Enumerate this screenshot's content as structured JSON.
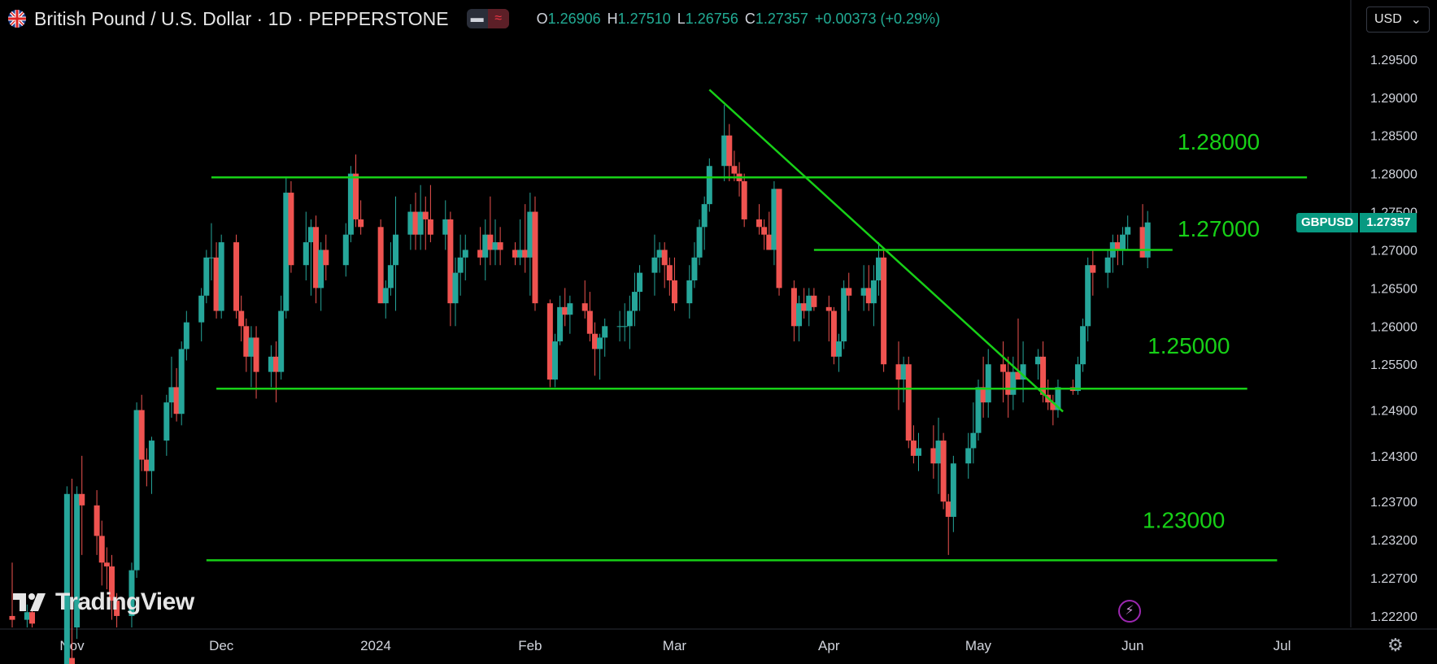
{
  "header": {
    "symbol_title": "British Pound / U.S. Dollar · 1D · PEPPERSTONE",
    "ohlc": {
      "o_label": "O",
      "o": "1.26906",
      "h_label": "H",
      "h": "1.27510",
      "l_label": "L",
      "l": "1.26756",
      "c_label": "C",
      "c": "1.27357",
      "change": "+0.00373 (+0.29%)"
    }
  },
  "currency_selector": {
    "label": "USD",
    "arrow": "⌄"
  },
  "ticker": {
    "name": "GBPUSD",
    "price": "1.27357"
  },
  "logo": {
    "text": "TradingView"
  },
  "colors": {
    "up": "#26a69a",
    "down": "#ef5350",
    "annotation": "#17d017",
    "grid": "#1e222d",
    "axis_text": "#d1d4dc",
    "tag": "#089981"
  },
  "chart_data": {
    "type": "candlestick",
    "title": "British Pound / U.S. Dollar · 1D · PEPPERSTONE",
    "ylim": [
      1.2205,
      1.2985
    ],
    "y_ticks": [
      "1.29500",
      "1.29000",
      "1.28500",
      "1.28000",
      "1.27500",
      "1.27000",
      "1.26500",
      "1.26000",
      "1.25500",
      "1.24900",
      "1.24300",
      "1.23700",
      "1.23200",
      "1.22700",
      "1.22200"
    ],
    "x_ticks": [
      {
        "label": "Nov",
        "date": "2023-11-01"
      },
      {
        "label": "Dec",
        "date": "2023-12-01"
      },
      {
        "label": "2024",
        "date": "2024-01-01"
      },
      {
        "label": "Feb",
        "date": "2024-02-01"
      },
      {
        "label": "Mar",
        "date": "2024-03-01"
      },
      {
        "label": "Apr",
        "date": "2024-04-01"
      },
      {
        "label": "May",
        "date": "2024-05-01"
      },
      {
        "label": "Jun",
        "date": "2024-06-01"
      },
      {
        "label": "Jul",
        "date": "2024-07-01"
      }
    ],
    "x_range": [
      "2023-10-20",
      "2024-07-13"
    ],
    "grid": false,
    "candles": [
      [
        "2023-10-20",
        1.222,
        1.229,
        1.2205,
        1.2215
      ],
      [
        "2023-10-23",
        1.2215,
        1.2235,
        1.2205,
        1.2225
      ],
      [
        "2023-10-24",
        1.2225,
        1.223,
        1.2205,
        1.221
      ],
      [
        "2023-10-31",
        1.215,
        1.239,
        1.214,
        1.238
      ],
      [
        "2023-11-01",
        1.2165,
        1.24,
        1.2125,
        1.215
      ],
      [
        "2023-11-02",
        1.2205,
        1.239,
        1.219,
        1.238
      ],
      [
        "2023-11-03",
        1.238,
        1.243,
        1.23,
        1.2365
      ],
      [
        "2023-11-06",
        1.2365,
        1.2385,
        1.23,
        1.2325
      ],
      [
        "2023-11-07",
        1.2325,
        1.2345,
        1.226,
        1.229
      ],
      [
        "2023-11-08",
        1.229,
        1.231,
        1.2255,
        1.2285
      ],
      [
        "2023-11-09",
        1.2285,
        1.23,
        1.2215,
        1.224
      ],
      [
        "2023-11-10",
        1.224,
        1.225,
        1.2205,
        1.222
      ],
      [
        "2023-11-13",
        1.222,
        1.229,
        1.2205,
        1.228
      ],
      [
        "2023-11-14",
        1.228,
        1.25,
        1.227,
        1.249
      ],
      [
        "2023-11-15",
        1.249,
        1.251,
        1.241,
        1.2425
      ],
      [
        "2023-11-16",
        1.2425,
        1.244,
        1.239,
        1.241
      ],
      [
        "2023-11-17",
        1.241,
        1.2455,
        1.238,
        1.245
      ],
      [
        "2023-11-20",
        1.245,
        1.251,
        1.243,
        1.25
      ],
      [
        "2023-11-21",
        1.25,
        1.256,
        1.248,
        1.252
      ],
      [
        "2023-11-22",
        1.252,
        1.2545,
        1.2475,
        1.2485
      ],
      [
        "2023-11-23",
        1.2485,
        1.258,
        1.247,
        1.257
      ],
      [
        "2023-11-24",
        1.257,
        1.262,
        1.2555,
        1.2605
      ],
      [
        "2023-11-27",
        1.2605,
        1.265,
        1.258,
        1.264
      ],
      [
        "2023-11-28",
        1.264,
        1.27,
        1.263,
        1.269
      ],
      [
        "2023-11-29",
        1.269,
        1.2735,
        1.266,
        1.269
      ],
      [
        "2023-11-30",
        1.269,
        1.271,
        1.261,
        1.262
      ],
      [
        "2023-12-01",
        1.262,
        1.272,
        1.261,
        1.271
      ],
      [
        "2023-12-04",
        1.271,
        1.272,
        1.261,
        1.262
      ],
      [
        "2023-12-05",
        1.262,
        1.264,
        1.258,
        1.26
      ],
      [
        "2023-12-06",
        1.26,
        1.261,
        1.254,
        1.256
      ],
      [
        "2023-12-07",
        1.256,
        1.26,
        1.252,
        1.2585
      ],
      [
        "2023-12-08",
        1.2585,
        1.26,
        1.2505,
        1.254
      ],
      [
        "2023-12-11",
        1.254,
        1.2575,
        1.252,
        1.256
      ],
      [
        "2023-12-12",
        1.256,
        1.258,
        1.25,
        1.254
      ],
      [
        "2023-12-13",
        1.254,
        1.264,
        1.253,
        1.262
      ],
      [
        "2023-12-14",
        1.262,
        1.2795,
        1.261,
        1.2775
      ],
      [
        "2023-12-15",
        1.2775,
        1.279,
        1.267,
        1.268
      ],
      [
        "2023-12-18",
        1.268,
        1.275,
        1.266,
        1.271
      ],
      [
        "2023-12-19",
        1.271,
        1.274,
        1.264,
        1.273
      ],
      [
        "2023-12-20",
        1.273,
        1.2745,
        1.263,
        1.265
      ],
      [
        "2023-12-21",
        1.265,
        1.271,
        1.262,
        1.27
      ],
      [
        "2023-12-22",
        1.27,
        1.272,
        1.266,
        1.268
      ],
      [
        "2023-12-26",
        1.268,
        1.2735,
        1.2665,
        1.272
      ],
      [
        "2023-12-27",
        1.272,
        1.281,
        1.271,
        1.28
      ],
      [
        "2023-12-28",
        1.28,
        1.2825,
        1.273,
        1.274
      ],
      [
        "2023-12-29",
        1.274,
        1.2765,
        1.272,
        1.273
      ],
      [
        "2024-01-02",
        1.273,
        1.274,
        1.263,
        1.263
      ],
      [
        "2024-01-03",
        1.263,
        1.266,
        1.261,
        1.265
      ],
      [
        "2024-01-04",
        1.265,
        1.271,
        1.264,
        1.268
      ],
      [
        "2024-01-05",
        1.268,
        1.277,
        1.262,
        1.272
      ],
      [
        "2024-01-08",
        1.272,
        1.276,
        1.27,
        1.275
      ],
      [
        "2024-01-09",
        1.275,
        1.2775,
        1.27,
        1.272
      ],
      [
        "2024-01-10",
        1.272,
        1.2785,
        1.27,
        1.275
      ],
      [
        "2024-01-11",
        1.275,
        1.277,
        1.27,
        1.274
      ],
      [
        "2024-01-12",
        1.274,
        1.2785,
        1.271,
        1.272
      ],
      [
        "2024-01-15",
        1.272,
        1.2765,
        1.27,
        1.274
      ],
      [
        "2024-01-16",
        1.274,
        1.275,
        1.26,
        1.263
      ],
      [
        "2024-01-17",
        1.263,
        1.269,
        1.26,
        1.267
      ],
      [
        "2024-01-18",
        1.267,
        1.272,
        1.264,
        1.269
      ],
      [
        "2024-01-19",
        1.269,
        1.272,
        1.266,
        1.27
      ],
      [
        "2024-01-22",
        1.27,
        1.273,
        1.268,
        1.269
      ],
      [
        "2024-01-23",
        1.269,
        1.274,
        1.266,
        1.272
      ],
      [
        "2024-01-24",
        1.272,
        1.277,
        1.268,
        1.27
      ],
      [
        "2024-01-25",
        1.27,
        1.274,
        1.268,
        1.271
      ],
      [
        "2024-01-26",
        1.271,
        1.273,
        1.268,
        1.27
      ],
      [
        "2024-01-29",
        1.27,
        1.271,
        1.268,
        1.269
      ],
      [
        "2024-01-30",
        1.269,
        1.274,
        1.268,
        1.27
      ],
      [
        "2024-01-31",
        1.27,
        1.276,
        1.267,
        1.269
      ],
      [
        "2024-02-01",
        1.269,
        1.2775,
        1.264,
        1.275
      ],
      [
        "2024-02-02",
        1.275,
        1.277,
        1.262,
        1.263
      ],
      [
        "2024-02-05",
        1.263,
        1.2635,
        1.252,
        1.253
      ],
      [
        "2024-02-06",
        1.253,
        1.259,
        1.252,
        1.258
      ],
      [
        "2024-02-07",
        1.258,
        1.264,
        1.2575,
        1.2625
      ],
      [
        "2024-02-08",
        1.2625,
        1.265,
        1.26,
        1.2615
      ],
      [
        "2024-02-09",
        1.2615,
        1.264,
        1.259,
        1.263
      ],
      [
        "2024-02-12",
        1.263,
        1.266,
        1.261,
        1.262
      ],
      [
        "2024-02-13",
        1.262,
        1.2645,
        1.258,
        1.259
      ],
      [
        "2024-02-14",
        1.259,
        1.2605,
        1.2535,
        1.257
      ],
      [
        "2024-02-15",
        1.257,
        1.259,
        1.253,
        1.2585
      ],
      [
        "2024-02-16",
        1.2585,
        1.261,
        1.256,
        1.26
      ],
      [
        "2024-02-19",
        1.26,
        1.262,
        1.258,
        1.26
      ],
      [
        "2024-02-20",
        1.26,
        1.263,
        1.258,
        1.26
      ],
      [
        "2024-02-21",
        1.26,
        1.264,
        1.257,
        1.262
      ],
      [
        "2024-02-22",
        1.262,
        1.267,
        1.26,
        1.2645
      ],
      [
        "2024-02-23",
        1.2645,
        1.268,
        1.262,
        1.267
      ],
      [
        "2024-02-26",
        1.267,
        1.272,
        1.264,
        1.269
      ],
      [
        "2024-02-27",
        1.269,
        1.271,
        1.267,
        1.27
      ],
      [
        "2024-02-28",
        1.27,
        1.271,
        1.265,
        1.268
      ],
      [
        "2024-02-29",
        1.268,
        1.269,
        1.264,
        1.266
      ],
      [
        "2024-03-01",
        1.266,
        1.269,
        1.262,
        1.263
      ],
      [
        "2024-03-04",
        1.263,
        1.268,
        1.261,
        1.266
      ],
      [
        "2024-03-05",
        1.266,
        1.271,
        1.265,
        1.269
      ],
      [
        "2024-03-06",
        1.269,
        1.274,
        1.268,
        1.273
      ],
      [
        "2024-03-07",
        1.273,
        1.277,
        1.27,
        1.276
      ],
      [
        "2024-03-08",
        1.276,
        1.282,
        1.275,
        1.281
      ],
      [
        "2024-03-11",
        1.281,
        1.289,
        1.279,
        1.285
      ],
      [
        "2024-03-12",
        1.285,
        1.2865,
        1.279,
        1.281
      ],
      [
        "2024-03-13",
        1.281,
        1.283,
        1.279,
        1.28
      ],
      [
        "2024-03-14",
        1.28,
        1.2815,
        1.277,
        1.279
      ],
      [
        "2024-03-15",
        1.279,
        1.28,
        1.273,
        1.274
      ],
      [
        "2024-03-18",
        1.274,
        1.276,
        1.272,
        1.273
      ],
      [
        "2024-03-19",
        1.273,
        1.274,
        1.27,
        1.272
      ],
      [
        "2024-03-20",
        1.272,
        1.275,
        1.27,
        1.27
      ],
      [
        "2024-03-21",
        1.27,
        1.279,
        1.268,
        1.278
      ],
      [
        "2024-03-22",
        1.278,
        1.278,
        1.264,
        1.265
      ],
      [
        "2024-03-25",
        1.265,
        1.266,
        1.258,
        1.26
      ],
      [
        "2024-03-26",
        1.26,
        1.264,
        1.258,
        1.263
      ],
      [
        "2024-03-27",
        1.263,
        1.265,
        1.261,
        1.262
      ],
      [
        "2024-03-28",
        1.262,
        1.265,
        1.26,
        1.264
      ],
      [
        "2024-03-29",
        1.264,
        1.265,
        1.262,
        1.2625
      ],
      [
        "2024-04-01",
        1.2625,
        1.264,
        1.258,
        1.262
      ],
      [
        "2024-04-02",
        1.262,
        1.2625,
        1.255,
        1.256
      ],
      [
        "2024-04-03",
        1.256,
        1.259,
        1.254,
        1.258
      ],
      [
        "2024-04-04",
        1.258,
        1.266,
        1.257,
        1.265
      ],
      [
        "2024-04-05",
        1.265,
        1.267,
        1.262,
        1.264
      ],
      [
        "2024-04-08",
        1.264,
        1.268,
        1.262,
        1.265
      ],
      [
        "2024-04-09",
        1.265,
        1.268,
        1.262,
        1.263
      ],
      [
        "2024-04-10",
        1.263,
        1.268,
        1.26,
        1.266
      ],
      [
        "2024-04-11",
        1.266,
        1.271,
        1.264,
        1.269
      ],
      [
        "2024-04-12",
        1.269,
        1.27,
        1.254,
        1.255
      ],
      [
        "2024-04-15",
        1.255,
        1.258,
        1.249,
        1.253
      ],
      [
        "2024-04-16",
        1.253,
        1.256,
        1.25,
        1.255
      ],
      [
        "2024-04-17",
        1.255,
        1.256,
        1.244,
        1.245
      ],
      [
        "2024-04-18",
        1.245,
        1.247,
        1.242,
        1.243
      ],
      [
        "2024-04-19",
        1.243,
        1.246,
        1.241,
        1.244
      ],
      [
        "2024-04-22",
        1.244,
        1.247,
        1.24,
        1.242
      ],
      [
        "2024-04-23",
        1.242,
        1.248,
        1.238,
        1.245
      ],
      [
        "2024-04-24",
        1.245,
        1.246,
        1.236,
        1.237
      ],
      [
        "2024-04-25",
        1.237,
        1.238,
        1.23,
        1.235
      ],
      [
        "2024-04-26",
        1.235,
        1.243,
        1.233,
        1.242
      ],
      [
        "2024-04-29",
        1.242,
        1.246,
        1.24,
        1.244
      ],
      [
        "2024-04-30",
        1.244,
        1.25,
        1.242,
        1.246
      ],
      [
        "2024-05-01",
        1.246,
        1.253,
        1.245,
        1.252
      ],
      [
        "2024-05-02",
        1.252,
        1.256,
        1.248,
        1.25
      ],
      [
        "2024-05-03",
        1.25,
        1.257,
        1.248,
        1.255
      ],
      [
        "2024-05-06",
        1.255,
        1.258,
        1.25,
        1.254
      ],
      [
        "2024-05-07",
        1.254,
        1.256,
        1.248,
        1.251
      ],
      [
        "2024-05-08",
        1.251,
        1.256,
        1.249,
        1.254
      ],
      [
        "2024-05-09",
        1.254,
        1.261,
        1.253,
        1.253
      ],
      [
        "2024-05-10",
        1.253,
        1.258,
        1.25,
        1.255
      ],
      [
        "2024-05-13",
        1.255,
        1.257,
        1.253,
        1.256
      ],
      [
        "2024-05-14",
        1.256,
        1.258,
        1.25,
        1.251
      ],
      [
        "2024-05-15",
        1.251,
        1.253,
        1.249,
        1.25
      ],
      [
        "2024-05-16",
        1.25,
        1.251,
        1.247,
        1.249
      ],
      [
        "2024-05-17",
        1.249,
        1.253,
        1.248,
        1.252
      ],
      [
        "2024-05-20",
        1.252,
        1.253,
        1.251,
        1.2515
      ],
      [
        "2024-05-21",
        1.2515,
        1.256,
        1.251,
        1.255
      ],
      [
        "2024-05-22",
        1.255,
        1.261,
        1.254,
        1.26
      ],
      [
        "2024-05-23",
        1.26,
        1.269,
        1.258,
        1.268
      ],
      [
        "2024-05-24",
        1.268,
        1.27,
        1.264,
        1.267
      ],
      [
        "2024-05-27",
        1.267,
        1.27,
        1.265,
        1.269
      ],
      [
        "2024-05-28",
        1.269,
        1.272,
        1.267,
        1.271
      ],
      [
        "2024-05-29",
        1.271,
        1.272,
        1.268,
        1.27
      ],
      [
        "2024-05-30",
        1.27,
        1.273,
        1.268,
        1.272
      ],
      [
        "2024-05-31",
        1.272,
        1.2745,
        1.27,
        1.273
      ],
      [
        "2024-06-03",
        1.273,
        1.276,
        1.269,
        1.269
      ],
      [
        "2024-06-04",
        1.269,
        1.2751,
        1.2676,
        1.2736
      ]
    ],
    "annotations": {
      "horizontal_lines": [
        {
          "y": 1.2795,
          "from": "2023-11-29",
          "to": "2024-07-06"
        },
        {
          "y": 1.27,
          "from": "2024-03-29",
          "to": "2024-06-09"
        },
        {
          "y": 1.2518,
          "from": "2023-11-30",
          "to": "2024-06-24"
        },
        {
          "y": 1.2293,
          "from": "2023-11-28",
          "to": "2024-06-30"
        }
      ],
      "trend_lines": [
        {
          "from": [
            "2024-03-08",
            1.291
          ],
          "to": [
            "2024-05-18",
            1.2488
          ]
        }
      ],
      "labels": [
        {
          "text": "1.28000",
          "date": "2024-06-10",
          "price": 1.2842
        },
        {
          "text": "1.27000",
          "date": "2024-06-10",
          "price": 1.2728
        },
        {
          "text": "1.25000",
          "date": "2024-06-04",
          "price": 1.2575
        },
        {
          "text": "1.23000",
          "date": "2024-06-03",
          "price": 1.2346
        }
      ]
    }
  }
}
